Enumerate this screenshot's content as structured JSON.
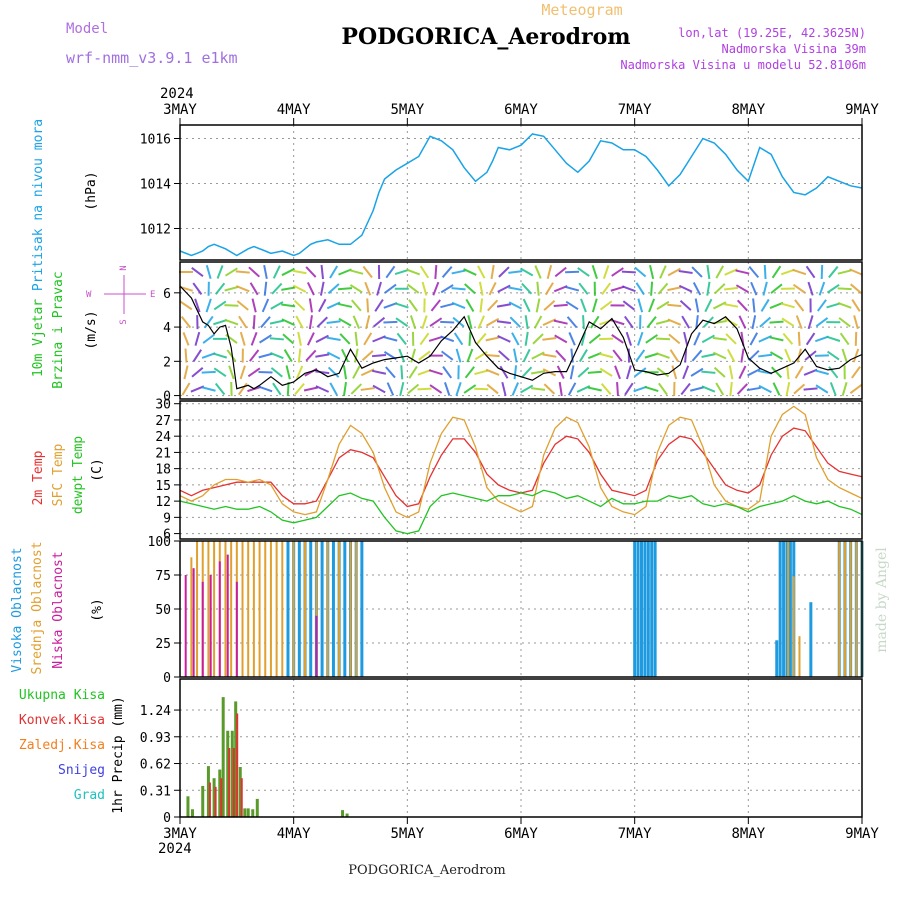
{
  "header": {
    "model_label": "Model",
    "model_name": "wrf-nmm_v3.9.1  e1km",
    "meteogram_label": "Meteogram",
    "station_title": "PODGORICA_Aerodrom",
    "lonlat": "lon,lat (19.25E, 42.3625N)",
    "elevation": "Nadmorska Visina 39m",
    "model_elevation": "Nadmorska Visina u modelu 52.8106m"
  },
  "footer_title": "PODGORICA_Aerodrom",
  "watermark": "made by Angel",
  "colors": {
    "pressure": "#1aa3e6",
    "temp2m": "#e63232",
    "sfc_temp": "#e0a030",
    "dewpt": "#22c322",
    "cloud_high": "#1e9be0",
    "cloud_mid": "#e0a030",
    "cloud_low": "#c81e9b",
    "precip_total": "#5a9a2a",
    "precip_conv": "#e03232",
    "wind_speed": "#000000",
    "wind_gust_marks": "#e03232",
    "wind_compass": "#c850c8",
    "label_green": "#22c322",
    "label_orange": "#f08020",
    "label_blue": "#4040e0",
    "label_cyan": "#20c0c0"
  },
  "time_axis": {
    "year_top": "2024",
    "year_bottom": "2024",
    "ticks": [
      "3MAY",
      "4MAY",
      "5MAY",
      "6MAY",
      "7MAY",
      "8MAY",
      "9MAY"
    ]
  },
  "chart_data": [
    {
      "type": "line",
      "panel": "pressure",
      "labels": [
        "Pritisak na nivou mora",
        "(hPa)"
      ],
      "xlim": [
        0,
        6
      ],
      "ylim": [
        1010.6,
        1016.6
      ],
      "yticks": [
        "1012",
        "1014",
        "1016"
      ],
      "series": [
        {
          "x": [
            0,
            0.1,
            0.15,
            0.2,
            0.25,
            0.3,
            0.4,
            0.5,
            0.6,
            0.65,
            0.75,
            0.8,
            0.9,
            1,
            1.05,
            1.1,
            1.15,
            1.2,
            1.3,
            1.4,
            1.5,
            1.6,
            1.7,
            1.75,
            1.8,
            1.9,
            2,
            2.1,
            2.2,
            2.3,
            2.4,
            2.5,
            2.6,
            2.7,
            2.75,
            2.8,
            2.9,
            3,
            3.1,
            3.2,
            3.3,
            3.4,
            3.5,
            3.6,
            3.7,
            3.8,
            3.9,
            4,
            4.1,
            4.2,
            4.3,
            4.4,
            4.5,
            4.6,
            4.7,
            4.8,
            4.9,
            5,
            5.1,
            5.2,
            5.3,
            5.4,
            5.5,
            5.6,
            5.7,
            5.8,
            5.9,
            6
          ],
          "y": [
            1011,
            1010.8,
            1010.9,
            1011,
            1011.2,
            1011.3,
            1011.1,
            1010.8,
            1011.1,
            1011.2,
            1011,
            1010.9,
            1011,
            1010.8,
            1010.9,
            1011.1,
            1011.3,
            1011.4,
            1011.5,
            1011.3,
            1011.3,
            1011.7,
            1012.8,
            1013.6,
            1014.2,
            1014.6,
            1014.9,
            1015.2,
            1016.1,
            1015.9,
            1015.5,
            1014.7,
            1014.1,
            1014.5,
            1015,
            1015.6,
            1015.5,
            1015.7,
            1016.2,
            1016.1,
            1015.5,
            1014.9,
            1014.5,
            1015,
            1015.9,
            1015.8,
            1015.5,
            1015.5,
            1015.2,
            1014.6,
            1013.9,
            1014.4,
            1015.2,
            1016,
            1015.8,
            1015.3,
            1014.6,
            1014.1,
            1015.6,
            1015.3,
            1014.3,
            1013.6,
            1013.5,
            1013.8,
            1014.3,
            1014.1,
            1013.9,
            1013.8
          ]
        }
      ]
    },
    {
      "type": "line",
      "panel": "wind",
      "labels": [
        "10m Vjetar",
        "Brzina i Pravac",
        "(m/s)"
      ],
      "compass": {
        "n": "N",
        "w": "W",
        "e": "E",
        "s": "S"
      },
      "xlim": [
        0,
        6
      ],
      "ylim": [
        -0.2,
        7.8
      ],
      "yticks": [
        "0",
        "2",
        "4",
        "6"
      ],
      "series": [
        {
          "name": "speed",
          "x": [
            0,
            0.1,
            0.2,
            0.25,
            0.3,
            0.35,
            0.4,
            0.45,
            0.5,
            0.55,
            0.6,
            0.65,
            0.7,
            0.8,
            0.9,
            1,
            1.1,
            1.2,
            1.3,
            1.4,
            1.5,
            1.6,
            1.7,
            1.8,
            1.9,
            2,
            2.1,
            2.2,
            2.3,
            2.4,
            2.5,
            2.6,
            2.7,
            2.8,
            2.9,
            3,
            3.1,
            3.2,
            3.3,
            3.4,
            3.5,
            3.6,
            3.7,
            3.8,
            3.9,
            4,
            4.1,
            4.2,
            4.3,
            4.4,
            4.5,
            4.6,
            4.7,
            4.8,
            4.9,
            5,
            5.1,
            5.2,
            5.3,
            5.4,
            5.5,
            5.6,
            5.7,
            5.8,
            5.9,
            6
          ],
          "y": [
            6.4,
            5.7,
            4.3,
            4.1,
            3.6,
            4,
            4.1,
            2.8,
            0.4,
            0.5,
            0.6,
            0.4,
            0.6,
            1.1,
            0.6,
            0.8,
            1.3,
            1.5,
            1.1,
            1.3,
            2.7,
            1.6,
            1.9,
            2.1,
            2.2,
            2.3,
            1.9,
            2.3,
            3.2,
            3.8,
            4.6,
            3.1,
            2.3,
            1.6,
            1.3,
            1.1,
            0.9,
            1.3,
            1.4,
            1.4,
            2.8,
            4.3,
            3.9,
            4.5,
            3.4,
            1.5,
            1.4,
            1.2,
            1.3,
            1.8,
            3.6,
            4.4,
            4.2,
            4.6,
            3.9,
            2.2,
            1.6,
            1.3,
            1.6,
            1.9,
            2.7,
            1.7,
            1.5,
            1.6,
            2.1,
            2.4
          ]
        }
      ]
    },
    {
      "type": "line",
      "panel": "temperature",
      "labels": [
        "2m Temp",
        "SFC Temp",
        "dewpt Temp",
        "(C)"
      ],
      "xlim": [
        0,
        6
      ],
      "ylim": [
        5,
        30.5
      ],
      "yticks": [
        "6",
        "9",
        "12",
        "15",
        "18",
        "21",
        "24",
        "27",
        "30"
      ],
      "series": [
        {
          "name": "2m Temp",
          "x": [
            0,
            0.1,
            0.2,
            0.3,
            0.4,
            0.5,
            0.6,
            0.7,
            0.8,
            0.9,
            1,
            1.1,
            1.2,
            1.3,
            1.4,
            1.5,
            1.6,
            1.7,
            1.8,
            1.9,
            2,
            2.1,
            2.2,
            2.3,
            2.4,
            2.5,
            2.6,
            2.7,
            2.8,
            2.9,
            3,
            3.1,
            3.2,
            3.3,
            3.4,
            3.5,
            3.6,
            3.7,
            3.8,
            3.9,
            4,
            4.1,
            4.2,
            4.3,
            4.4,
            4.5,
            4.6,
            4.7,
            4.8,
            4.9,
            5,
            5.1,
            5.2,
            5.3,
            5.4,
            5.5,
            5.6,
            5.7,
            5.8,
            5.9,
            6
          ],
          "y": [
            14,
            13,
            14,
            14.5,
            15,
            15.5,
            15.5,
            15.5,
            15.5,
            13,
            11.5,
            11.5,
            12,
            16,
            20,
            21.5,
            21,
            20,
            16.5,
            13,
            11,
            11.5,
            16.5,
            20.5,
            23.5,
            23.5,
            21,
            17,
            15,
            14,
            13.5,
            14,
            19,
            22.5,
            24,
            23.5,
            21,
            17,
            14,
            13.5,
            13,
            14,
            19.5,
            22.5,
            24,
            23.5,
            21,
            18,
            15,
            14,
            13.5,
            15,
            20.5,
            24,
            25.5,
            25,
            22,
            19,
            17.5,
            17,
            16.5
          ]
        },
        {
          "name": "SFC Temp",
          "x": [
            0,
            0.1,
            0.2,
            0.3,
            0.4,
            0.5,
            0.6,
            0.7,
            0.8,
            0.9,
            1,
            1.1,
            1.2,
            1.3,
            1.4,
            1.5,
            1.6,
            1.7,
            1.8,
            1.9,
            2,
            2.1,
            2.2,
            2.3,
            2.4,
            2.5,
            2.6,
            2.7,
            2.8,
            2.9,
            3,
            3.1,
            3.2,
            3.3,
            3.4,
            3.5,
            3.6,
            3.7,
            3.8,
            3.9,
            4,
            4.1,
            4.2,
            4.3,
            4.4,
            4.5,
            4.6,
            4.7,
            4.8,
            4.9,
            5,
            5.1,
            5.2,
            5.3,
            5.4,
            5.5,
            5.6,
            5.7,
            5.8,
            5.9,
            6
          ],
          "y": [
            13,
            12,
            13,
            15,
            16,
            16,
            15.5,
            16,
            15,
            11.5,
            10,
            9.5,
            10,
            16,
            22.5,
            26,
            24.5,
            21,
            14.5,
            10,
            9,
            10,
            19,
            24.5,
            27.5,
            27,
            22,
            14.5,
            12,
            11,
            10,
            11,
            20.5,
            25.5,
            27.5,
            26.5,
            22,
            14.5,
            11,
            10,
            9.5,
            11,
            21,
            26,
            27.5,
            27,
            22,
            15,
            12,
            11,
            10.5,
            12,
            24,
            28,
            29.5,
            28,
            20,
            16,
            14.5,
            13.5,
            12.5
          ]
        },
        {
          "name": "dewpt Temp",
          "x": [
            0,
            0.1,
            0.2,
            0.3,
            0.4,
            0.5,
            0.6,
            0.7,
            0.8,
            0.9,
            1,
            1.1,
            1.2,
            1.3,
            1.4,
            1.5,
            1.6,
            1.7,
            1.8,
            1.9,
            2,
            2.1,
            2.2,
            2.3,
            2.4,
            2.5,
            2.6,
            2.7,
            2.8,
            2.9,
            3,
            3.1,
            3.2,
            3.3,
            3.4,
            3.5,
            3.6,
            3.7,
            3.8,
            3.9,
            4,
            4.1,
            4.2,
            4.3,
            4.4,
            4.5,
            4.6,
            4.7,
            4.8,
            4.9,
            5,
            5.1,
            5.2,
            5.3,
            5.4,
            5.5,
            5.6,
            5.7,
            5.8,
            5.9,
            6
          ],
          "y": [
            12,
            11.5,
            11,
            10.5,
            11,
            10.5,
            10.5,
            11,
            10,
            8.5,
            8,
            8.5,
            9,
            11,
            13,
            13.5,
            12.5,
            12,
            9,
            6.5,
            6,
            6.5,
            11,
            13,
            13.5,
            13,
            12.5,
            12,
            13,
            13,
            13.5,
            13,
            14,
            13.5,
            12.5,
            13,
            12,
            11,
            12.5,
            11.5,
            11.5,
            12,
            12,
            13,
            12.5,
            13,
            11.5,
            11,
            11.5,
            11,
            10,
            11,
            11.5,
            12,
            13,
            12,
            11.5,
            12,
            11,
            10.5,
            9.5
          ]
        }
      ]
    },
    {
      "type": "bar",
      "panel": "cloud",
      "labels": [
        "Visoka Oblacnost",
        "Srednja Oblacnost",
        "Niska Oblacnost",
        "(%)"
      ],
      "xlim": [
        0,
        6
      ],
      "ylim": [
        0,
        100
      ],
      "yticks": [
        "0",
        "25",
        "50",
        "75",
        "100"
      ],
      "series": [
        {
          "name": "Visoka Oblacnost",
          "x": [
            0.95,
            1,
            1.05,
            1.1,
            1.15,
            1.2,
            1.25,
            1.3,
            1.35,
            1.4,
            1.45,
            1.5,
            1.55,
            1.6,
            4.0,
            4.03,
            4.06,
            4.09,
            4.12,
            4.15,
            4.18,
            5.25,
            5.28,
            5.31,
            5.34,
            5.37,
            5.4,
            5.55,
            5.8,
            5.85,
            5.9,
            5.95,
            6
          ],
          "y": [
            100,
            100,
            100,
            100,
            100,
            100,
            100,
            100,
            100,
            100,
            100,
            100,
            100,
            100,
            100,
            100,
            100,
            100,
            100,
            100,
            100,
            27,
            100,
            100,
            100,
            100,
            100,
            55,
            100,
            100,
            100,
            100,
            100
          ]
        },
        {
          "name": "Srednja Oblacnost",
          "x": [
            0.1,
            0.15,
            0.2,
            0.25,
            0.3,
            0.35,
            0.4,
            0.45,
            0.5,
            0.55,
            0.6,
            0.65,
            0.7,
            0.75,
            0.8,
            0.85,
            0.9,
            1.0,
            1.1,
            1.2,
            1.3,
            1.4,
            1.5,
            1.55,
            5.35,
            5.4,
            5.45,
            5.8,
            5.85,
            5.9,
            5.95,
            6
          ],
          "y": [
            88,
            100,
            100,
            100,
            100,
            100,
            100,
            100,
            100,
            100,
            100,
            100,
            100,
            100,
            100,
            100,
            100,
            100,
            100,
            100,
            100,
            100,
            100,
            100,
            100,
            74,
            30,
            100,
            100,
            100,
            100,
            100
          ]
        },
        {
          "name": "Niska Oblacnost",
          "x": [
            0.05,
            0.12,
            0.2,
            0.27,
            0.35,
            0.42,
            0.5,
            1.2
          ],
          "y": [
            75,
            80,
            70,
            75,
            85,
            90,
            70,
            45
          ]
        }
      ]
    },
    {
      "type": "bar",
      "panel": "precip",
      "labels": [
        "Ukupna Kisa",
        "Konvek.Kisa",
        "Zaledj.Kisa",
        "Snijeg",
        "Grad",
        "1hr Precip (mm)"
      ],
      "xlim": [
        0,
        6
      ],
      "ylim": [
        0,
        1.6
      ],
      "yticks": [
        "0",
        "0.31",
        "0.62",
        "0.93",
        "1.24"
      ],
      "series": [
        {
          "name": "Ukupna Kisa",
          "x": [
            0.07,
            0.11,
            0.2,
            0.25,
            0.3,
            0.35,
            0.38,
            0.42,
            0.46,
            0.49,
            0.53,
            0.57,
            0.6,
            0.64,
            0.68,
            1.43,
            1.47
          ],
          "y": [
            0.24,
            0.09,
            0.36,
            0.59,
            0.45,
            0.55,
            1.39,
            1.0,
            1.0,
            1.34,
            0.58,
            0.1,
            0.1,
            0.09,
            0.21,
            0.08,
            0.04
          ]
        },
        {
          "name": "Konvek.Kisa",
          "x": [
            0.25,
            0.3,
            0.35,
            0.42,
            0.46,
            0.49,
            0.53
          ],
          "y": [
            0.4,
            0.35,
            0.45,
            0.8,
            0.8,
            1.2,
            0.45
          ]
        }
      ]
    }
  ]
}
